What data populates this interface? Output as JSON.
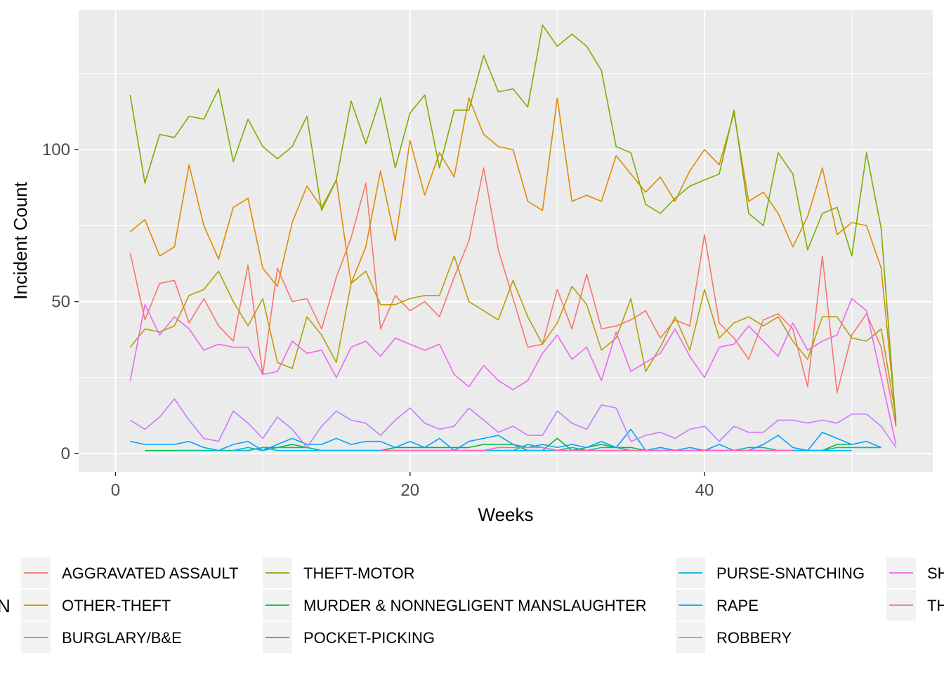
{
  "chart_data": {
    "type": "line",
    "xlabel": "Weeks",
    "ylabel": "Incident Count",
    "xlim": [
      -2.5,
      55.5
    ],
    "ylim": [
      -6,
      146
    ],
    "xticks": [
      0,
      20,
      40
    ],
    "yticks": [
      0,
      50,
      100
    ],
    "grid": true,
    "legend_position": "bottom",
    "legend_title": "N",
    "series": [
      {
        "name": "AGGRAVATED ASSAULT",
        "color": "#F8766D",
        "x": [
          1,
          2,
          3,
          4,
          5,
          6,
          7,
          8,
          9,
          10,
          11,
          12,
          13,
          14,
          15,
          16,
          17,
          18,
          19,
          20,
          21,
          22,
          23,
          24,
          25,
          26,
          27,
          28,
          29,
          30,
          31,
          32,
          33,
          34,
          35,
          36,
          37,
          38,
          39,
          40,
          41,
          42,
          43,
          44,
          45,
          46,
          47,
          48,
          49,
          50,
          51,
          52,
          53
        ],
        "y": [
          66,
          44,
          56,
          57,
          43,
          51,
          42,
          37,
          62,
          26,
          61,
          50,
          51,
          41,
          58,
          71,
          89,
          41,
          52,
          47,
          50,
          45,
          58,
          70,
          94,
          67,
          51,
          35,
          36,
          54,
          41,
          59,
          41,
          42,
          44,
          47,
          38,
          44,
          42,
          72,
          43,
          38,
          31,
          44,
          46,
          41,
          22,
          65,
          20,
          39,
          46,
          35,
          9
        ]
      },
      {
        "name": "OTHER-THEFT",
        "color": "#DE8C00",
        "x": [
          1,
          2,
          3,
          4,
          5,
          6,
          7,
          8,
          9,
          10,
          11,
          12,
          13,
          14,
          15,
          16,
          17,
          18,
          19,
          20,
          21,
          22,
          23,
          24,
          25,
          26,
          27,
          28,
          29,
          30,
          31,
          32,
          33,
          34,
          35,
          36,
          37,
          38,
          39,
          40,
          41,
          42,
          43,
          44,
          45,
          46,
          47,
          48,
          49,
          50,
          51,
          52,
          53
        ],
        "y": [
          73,
          77,
          65,
          68,
          95,
          75,
          64,
          81,
          84,
          61,
          55,
          76,
          88,
          81,
          90,
          56,
          68,
          93,
          70,
          103,
          85,
          99,
          91,
          117,
          105,
          101,
          100,
          83,
          80,
          117,
          83,
          85,
          83,
          98,
          92,
          86,
          91,
          83,
          93,
          100,
          95,
          112,
          83,
          86,
          79,
          68,
          78,
          94,
          72,
          76,
          75,
          61,
          11
        ]
      },
      {
        "name": "BURGLARY/B&E",
        "color": "#B79F00",
        "x": [
          1,
          2,
          3,
          4,
          5,
          6,
          7,
          8,
          9,
          10,
          11,
          12,
          13,
          14,
          15,
          16,
          17,
          18,
          19,
          20,
          21,
          22,
          23,
          24,
          25,
          26,
          27,
          28,
          29,
          30,
          31,
          32,
          33,
          34,
          35,
          36,
          37,
          38,
          39,
          40,
          41,
          42,
          43,
          44,
          45,
          46,
          47,
          48,
          49,
          50,
          51,
          52,
          53
        ],
        "y": [
          35,
          41,
          40,
          42,
          52,
          54,
          60,
          50,
          42,
          51,
          30,
          28,
          45,
          39,
          30,
          56,
          60,
          49,
          49,
          51,
          52,
          52,
          65,
          50,
          47,
          44,
          57,
          45,
          36,
          43,
          55,
          49,
          34,
          38,
          51,
          27,
          35,
          45,
          34,
          54,
          38,
          43,
          45,
          42,
          45,
          37,
          31,
          45,
          45,
          38,
          37,
          41,
          12
        ]
      },
      {
        "name": "THEFT-MOTOR",
        "color": "#7CAE00",
        "x": [
          1,
          2,
          3,
          4,
          5,
          6,
          7,
          8,
          9,
          10,
          11,
          12,
          13,
          14,
          15,
          16,
          17,
          18,
          19,
          20,
          21,
          22,
          23,
          24,
          25,
          26,
          27,
          28,
          29,
          30,
          31,
          32,
          33,
          34,
          35,
          36,
          37,
          38,
          39,
          40,
          41,
          42,
          43,
          44,
          45,
          46,
          47,
          48,
          49,
          50,
          51,
          52,
          53
        ],
        "y": [
          118,
          89,
          105,
          104,
          111,
          110,
          120,
          96,
          110,
          101,
          97,
          101,
          111,
          80,
          90,
          116,
          102,
          117,
          94,
          112,
          118,
          94,
          113,
          113,
          131,
          119,
          120,
          114,
          141,
          134,
          138,
          134,
          126,
          101,
          99,
          82,
          79,
          84,
          88,
          90,
          92,
          113,
          79,
          75,
          99,
          92,
          67,
          79,
          81,
          65,
          99,
          74,
          9
        ]
      },
      {
        "name": "MURDER & NONNEGLIGENT MANSLAUGHTER",
        "color": "#00BA38",
        "x": [
          2,
          3,
          4,
          5,
          6,
          7,
          8,
          9,
          10,
          11,
          12,
          13,
          14,
          15,
          16,
          17,
          18,
          19,
          20,
          21,
          22,
          23,
          24,
          25,
          26,
          27,
          28,
          29,
          30,
          31,
          32,
          33,
          34,
          35,
          36,
          37,
          38,
          39,
          40,
          41,
          42,
          43,
          44,
          45,
          46,
          47,
          48,
          49,
          50
        ],
        "y": [
          1,
          1,
          1,
          1,
          1,
          1,
          1,
          1,
          2,
          2,
          3,
          2,
          1,
          1,
          1,
          1,
          1,
          2,
          2,
          2,
          2,
          2,
          2,
          3,
          3,
          3,
          1,
          1,
          5,
          1,
          2,
          3,
          2,
          2,
          1,
          1,
          1,
          1,
          1,
          1,
          1,
          1,
          1,
          1,
          1,
          1,
          1,
          3,
          3
        ]
      },
      {
        "name": "POCKET-PICKING",
        "color": "#00C08B",
        "x": [
          4,
          5,
          6,
          7,
          8,
          9,
          10,
          11,
          12,
          13,
          14,
          15,
          16,
          17,
          18,
          19,
          20,
          21,
          22,
          23,
          24,
          25,
          26,
          27,
          28,
          29,
          30,
          31,
          32,
          33,
          34,
          35,
          36,
          37,
          38,
          39,
          40,
          41,
          42,
          43,
          44,
          45,
          46,
          47,
          48,
          49,
          50,
          51,
          52
        ],
        "y": [
          1,
          1,
          1,
          1,
          1,
          2,
          1,
          2,
          2,
          2,
          1,
          1,
          1,
          1,
          1,
          1,
          1,
          1,
          1,
          1,
          1,
          1,
          1,
          1,
          3,
          2,
          1,
          2,
          1,
          2,
          2,
          1,
          1,
          2,
          1,
          1,
          1,
          1,
          1,
          2,
          2,
          1,
          1,
          1,
          1,
          2,
          2,
          2,
          2
        ]
      },
      {
        "name": "PURSE-SNATCHING",
        "color": "#00B4EF",
        "x": [
          8,
          9,
          10,
          11,
          12,
          13,
          14,
          15,
          16,
          17,
          18,
          19,
          20,
          21,
          22,
          23,
          24,
          25,
          26,
          27,
          28,
          29,
          30,
          31,
          32,
          33,
          34,
          35,
          36,
          37,
          38,
          39,
          40,
          41,
          42,
          43,
          44,
          45,
          46,
          47,
          48,
          49,
          50
        ],
        "y": [
          1,
          1,
          2,
          1,
          1,
          1,
          1,
          1,
          1,
          1,
          1,
          1,
          1,
          1,
          1,
          1,
          1,
          1,
          1,
          1,
          1,
          1,
          1,
          1,
          1,
          1,
          1,
          1,
          1,
          1,
          1,
          1,
          1,
          1,
          1,
          1,
          1,
          1,
          1,
          1,
          1,
          1,
          1
        ]
      },
      {
        "name": "RAPE",
        "color": "#00A5FF",
        "x": [
          1,
          2,
          3,
          4,
          5,
          6,
          7,
          8,
          9,
          10,
          11,
          12,
          13,
          14,
          15,
          16,
          17,
          18,
          19,
          20,
          21,
          22,
          23,
          24,
          25,
          26,
          27,
          28,
          29,
          30,
          31,
          32,
          33,
          34,
          35,
          36,
          37,
          38,
          39,
          40,
          41,
          42,
          43,
          44,
          45,
          46,
          47,
          48,
          49,
          50,
          51,
          52
        ],
        "y": [
          4,
          3,
          3,
          3,
          4,
          2,
          1,
          3,
          4,
          1,
          3,
          5,
          3,
          3,
          5,
          3,
          4,
          4,
          2,
          4,
          2,
          5,
          1,
          4,
          5,
          6,
          3,
          2,
          3,
          2,
          3,
          2,
          4,
          2,
          8,
          1,
          2,
          1,
          2,
          1,
          3,
          1,
          1,
          3,
          6,
          2,
          1,
          7,
          5,
          3,
          4,
          2
        ]
      },
      {
        "name": "ROBBERY",
        "color": "#C77CFF",
        "x": [
          1,
          2,
          3,
          4,
          5,
          6,
          7,
          8,
          9,
          10,
          11,
          12,
          13,
          14,
          15,
          16,
          17,
          18,
          19,
          20,
          21,
          22,
          23,
          24,
          25,
          26,
          27,
          28,
          29,
          30,
          31,
          32,
          33,
          34,
          35,
          36,
          37,
          38,
          39,
          40,
          41,
          42,
          43,
          44,
          45,
          46,
          47,
          48,
          49,
          50,
          51,
          52,
          53
        ],
        "y": [
          11,
          8,
          12,
          18,
          11,
          5,
          4,
          14,
          10,
          5,
          12,
          8,
          2,
          9,
          14,
          11,
          10,
          6,
          11,
          15,
          10,
          8,
          9,
          15,
          11,
          7,
          9,
          6,
          6,
          14,
          10,
          8,
          16,
          15,
          4,
          6,
          7,
          5,
          8,
          9,
          4,
          9,
          7,
          7,
          11,
          11,
          10,
          11,
          10,
          13,
          13,
          9,
          2
        ]
      },
      {
        "name": "SH",
        "color": "#ED68ED",
        "x": [
          1,
          2,
          3,
          4,
          5,
          6,
          7,
          8,
          9,
          10,
          11,
          12,
          13,
          14,
          15,
          16,
          17,
          18,
          19,
          20,
          21,
          22,
          23,
          24,
          25,
          26,
          27,
          28,
          29,
          30,
          31,
          32,
          33,
          34,
          35,
          36,
          37,
          38,
          39,
          40,
          41,
          42,
          43,
          44,
          45,
          46,
          47,
          48,
          49,
          50,
          51,
          52,
          53
        ],
        "y": [
          24,
          49,
          39,
          45,
          41,
          34,
          36,
          35,
          35,
          26,
          27,
          37,
          33,
          34,
          25,
          35,
          37,
          32,
          38,
          36,
          34,
          36,
          26,
          22,
          29,
          24,
          21,
          24,
          33,
          39,
          31,
          35,
          24,
          40,
          27,
          30,
          33,
          41,
          32,
          25,
          35,
          36,
          42,
          37,
          32,
          43,
          34,
          37,
          39,
          51,
          47,
          25,
          3
        ]
      },
      {
        "name": "TH",
        "color": "#FF61C3",
        "x": [
          18,
          19,
          20,
          21,
          22,
          23,
          24,
          25,
          26,
          27,
          28,
          29,
          30,
          31,
          32,
          33,
          34,
          35,
          36,
          37,
          38,
          39,
          40,
          41,
          42,
          43,
          44,
          45,
          46
        ],
        "y": [
          1,
          1,
          1,
          1,
          1,
          1,
          1,
          1,
          2,
          2,
          2,
          2,
          1,
          1,
          1,
          1,
          1,
          1,
          1,
          1,
          1,
          1,
          1,
          1,
          1,
          1,
          1,
          1,
          1
        ]
      }
    ]
  }
}
